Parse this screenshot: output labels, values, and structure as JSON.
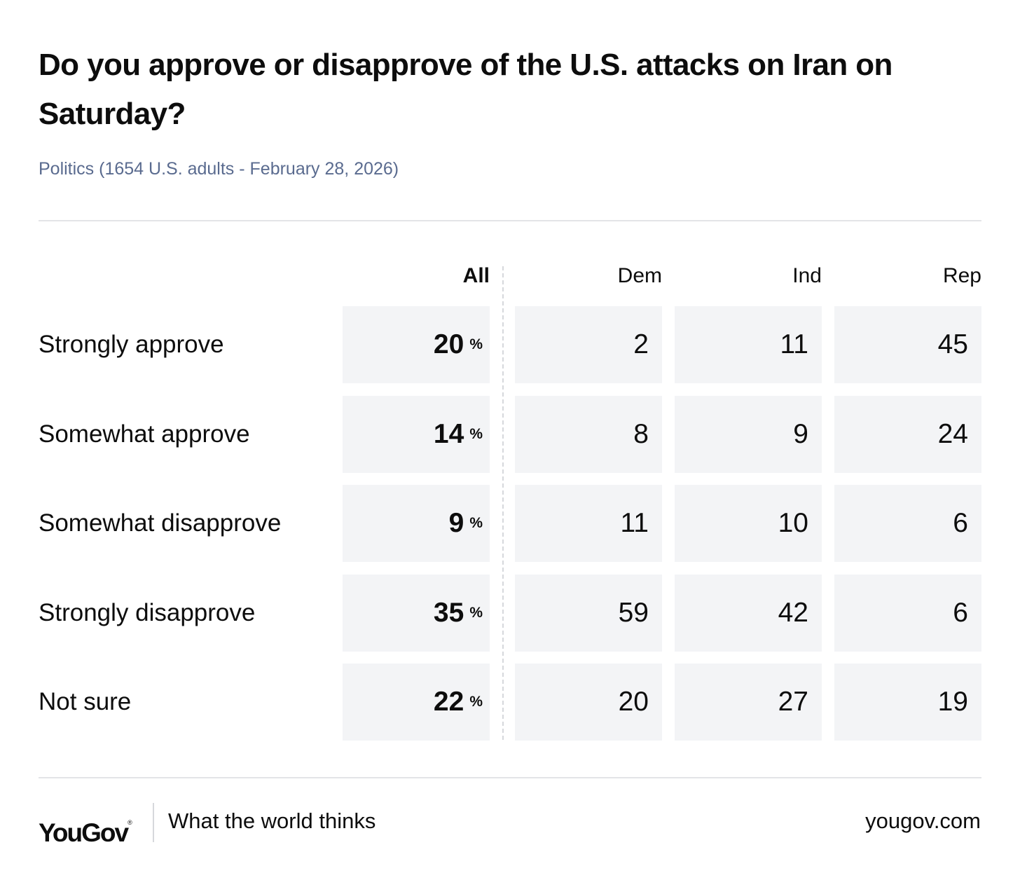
{
  "chart_data": {
    "type": "table",
    "title": "Do you approve or disapprove of the U.S. attacks on Iran on Saturday?",
    "subtitle": "Politics (1654 U.S. adults - February 28, 2026)",
    "columns": [
      "All",
      "Dem",
      "Ind",
      "Rep"
    ],
    "unit_symbol": "%",
    "rows": [
      {
        "label": "Strongly approve",
        "values": [
          20,
          2,
          11,
          45
        ]
      },
      {
        "label": "Somewhat approve",
        "values": [
          14,
          8,
          9,
          24
        ]
      },
      {
        "label": "Somewhat disapprove",
        "values": [
          9,
          11,
          10,
          6
        ]
      },
      {
        "label": "Strongly disapprove",
        "values": [
          35,
          59,
          42,
          6
        ]
      },
      {
        "label": "Not sure",
        "values": [
          22,
          20,
          27,
          19
        ]
      }
    ]
  },
  "footer": {
    "logo_text": "YouGov",
    "logo_mark": "®",
    "tagline": "What the world thinks",
    "site": "yougov.com"
  },
  "colors": {
    "cell_background": "#f3f4f6",
    "subtitle": "#5a6b8f",
    "rule": "#e3e4e7",
    "text": "#0d0d0d"
  }
}
